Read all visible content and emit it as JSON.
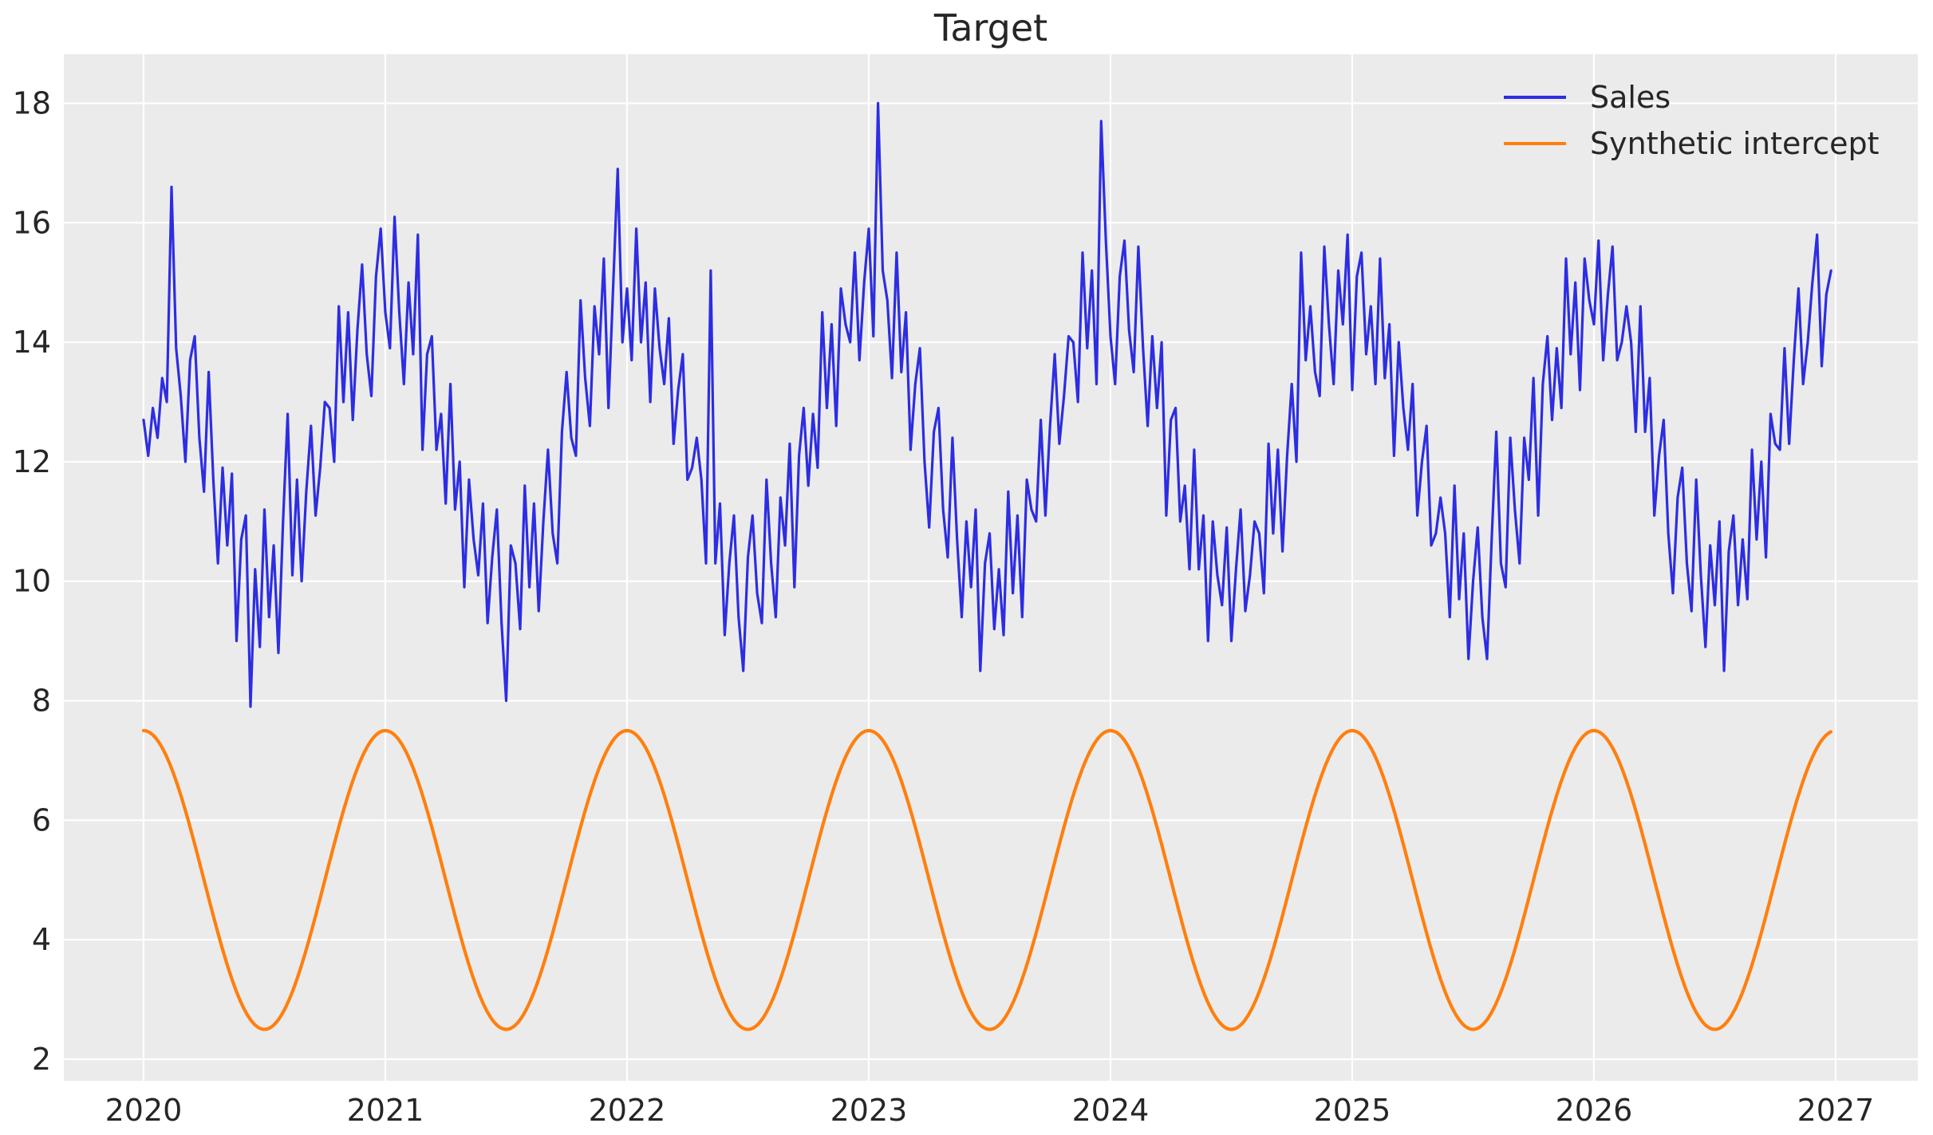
{
  "figure": {
    "title": "Target",
    "background": "#ffffff"
  },
  "plot": {
    "background": "#ebebeb",
    "grid_color": "#ffffff",
    "text_color": "#262626"
  },
  "legend": {
    "position": "upper right",
    "frame": false,
    "items": [
      {
        "label": "Sales",
        "color": "#2d2de2"
      },
      {
        "label": "Synthetic intercept",
        "color": "#ff7f0e"
      }
    ]
  },
  "chart_data": {
    "type": "line",
    "title": "Target",
    "xlabel": "",
    "ylabel": "",
    "x_unit": "year",
    "xlim": [
      2019.67,
      2027.34
    ],
    "ylim": [
      1.64,
      18.82
    ],
    "x_ticks": [
      2020,
      2021,
      2022,
      2023,
      2024,
      2025,
      2026,
      2027
    ],
    "y_ticks": [
      2,
      4,
      6,
      8,
      10,
      12,
      14,
      16,
      18
    ],
    "grid": true,
    "legend_position": "upper right",
    "series": [
      {
        "name": "Sales",
        "color": "#2d2de2",
        "line_width": 3.2,
        "sampling": "weekly",
        "x_start": 2020,
        "points_per_year": 52,
        "seasonality": "annual peak near year start (~14-18), trough mid-year (~8-10)",
        "observed_max": 18.0,
        "observed_min": 7.9,
        "values": [
          12.7,
          12.1,
          12.9,
          12.4,
          13.4,
          13.0,
          16.6,
          13.9,
          13.1,
          12.0,
          13.7,
          14.1,
          12.4,
          11.5,
          13.5,
          11.7,
          10.3,
          11.9,
          10.6,
          11.8,
          9.0,
          10.7,
          11.1,
          7.9,
          10.2,
          8.9,
          11.2,
          9.4,
          10.6,
          8.8,
          11.0,
          12.8,
          10.1,
          11.7,
          10.0,
          11.5,
          12.6,
          11.1,
          11.9,
          13.0,
          12.9,
          12.0,
          14.6,
          13.0,
          14.5,
          12.7,
          14.2,
          15.3,
          13.8,
          13.1,
          15.1,
          15.9,
          14.5,
          13.9,
          16.1,
          14.5,
          13.3,
          15.0,
          13.8,
          15.8,
          12.2,
          13.8,
          14.1,
          12.2,
          12.8,
          11.3,
          13.3,
          11.2,
          12.0,
          9.9,
          11.7,
          10.7,
          10.1,
          11.3,
          9.3,
          10.4,
          11.2,
          9.3,
          8.0,
          10.6,
          10.3,
          9.2,
          11.6,
          9.9,
          11.3,
          9.5,
          11.0,
          12.2,
          10.8,
          10.3,
          12.5,
          13.5,
          12.4,
          12.1,
          14.7,
          13.4,
          12.6,
          14.6,
          13.8,
          15.4,
          12.9,
          14.9,
          16.9,
          14.0,
          14.9,
          13.7,
          15.9,
          14.0,
          15.0,
          13.0,
          14.9,
          13.9,
          13.3,
          14.4,
          12.3,
          13.2,
          13.8,
          11.7,
          11.9,
          12.4,
          11.7,
          10.3,
          15.2,
          10.3,
          11.3,
          9.1,
          10.3,
          11.1,
          9.4,
          8.5,
          10.4,
          11.1,
          9.8,
          9.3,
          11.7,
          10.3,
          9.4,
          11.4,
          10.6,
          12.3,
          9.9,
          12.1,
          12.9,
          11.6,
          12.8,
          11.9,
          14.5,
          12.9,
          14.3,
          12.6,
          14.9,
          14.3,
          14.0,
          15.5,
          13.7,
          15.0,
          15.9,
          14.1,
          18.0,
          15.2,
          14.7,
          13.4,
          15.5,
          13.5,
          14.5,
          12.2,
          13.3,
          13.9,
          12.0,
          10.9,
          12.5,
          12.9,
          11.2,
          10.4,
          12.4,
          10.7,
          9.4,
          11.0,
          9.9,
          11.2,
          8.5,
          10.3,
          10.8,
          9.2,
          10.2,
          9.1,
          11.5,
          9.8,
          11.1,
          9.4,
          11.7,
          11.2,
          11.0,
          12.7,
          11.1,
          12.6,
          13.8,
          12.3,
          13.1,
          14.1,
          14.0,
          13.0,
          15.5,
          13.9,
          15.2,
          13.3,
          17.7,
          15.7,
          14.1,
          13.3,
          15.1,
          15.7,
          14.2,
          13.5,
          15.6,
          13.9,
          12.6,
          14.1,
          12.9,
          14.0,
          11.1,
          12.7,
          12.9,
          11.0,
          11.6,
          10.2,
          12.2,
          10.2,
          11.1,
          9.0,
          11.0,
          10.1,
          9.6,
          10.9,
          9.0,
          10.2,
          11.2,
          9.5,
          10.1,
          11.0,
          10.8,
          9.8,
          12.3,
          10.8,
          12.2,
          10.5,
          12.1,
          13.3,
          12.0,
          15.5,
          13.7,
          14.6,
          13.5,
          13.1,
          15.6,
          14.3,
          13.3,
          15.2,
          14.3,
          15.8,
          13.2,
          15.1,
          15.5,
          13.8,
          14.6,
          13.3,
          15.4,
          13.4,
          14.3,
          12.1,
          14.0,
          12.9,
          12.2,
          13.3,
          11.1,
          12.0,
          12.6,
          10.6,
          10.8,
          11.4,
          10.8,
          9.4,
          11.6,
          9.7,
          10.8,
          8.7,
          10.0,
          10.9,
          9.4,
          8.7,
          10.7,
          12.5,
          10.3,
          9.9,
          12.4,
          11.2,
          10.3,
          12.4,
          11.7,
          13.4,
          11.1,
          13.3,
          14.1,
          12.7,
          13.9,
          12.9,
          15.4,
          13.8,
          15.0,
          13.2,
          15.4,
          14.7,
          14.3,
          15.7,
          13.7,
          14.8,
          15.6,
          13.7,
          14.0,
          14.6,
          14.0,
          12.5,
          14.6,
          12.5,
          13.4,
          11.1,
          12.1,
          12.7,
          10.8,
          9.8,
          11.4,
          11.9,
          10.3,
          9.5,
          11.7,
          10.1,
          8.9,
          10.6,
          9.6,
          11.0,
          8.5,
          10.5,
          11.1,
          9.6,
          10.7,
          9.7,
          12.2,
          10.7,
          12.0,
          10.4,
          12.8,
          12.3,
          12.2,
          13.9,
          12.3,
          13.7,
          14.9,
          13.3,
          14.0,
          15.0,
          15.8,
          13.6,
          14.8,
          15.2
        ]
      },
      {
        "name": "Synthetic intercept",
        "color": "#ff7f0e",
        "line_width": 4.2,
        "shape": "cosine",
        "mean": 5,
        "amplitude": 2.5,
        "period_years": 1,
        "phase": "peak at start of each year",
        "min": 2.5,
        "max": 7.5,
        "x_start": 2020,
        "x_end": 2026.98
      }
    ]
  }
}
